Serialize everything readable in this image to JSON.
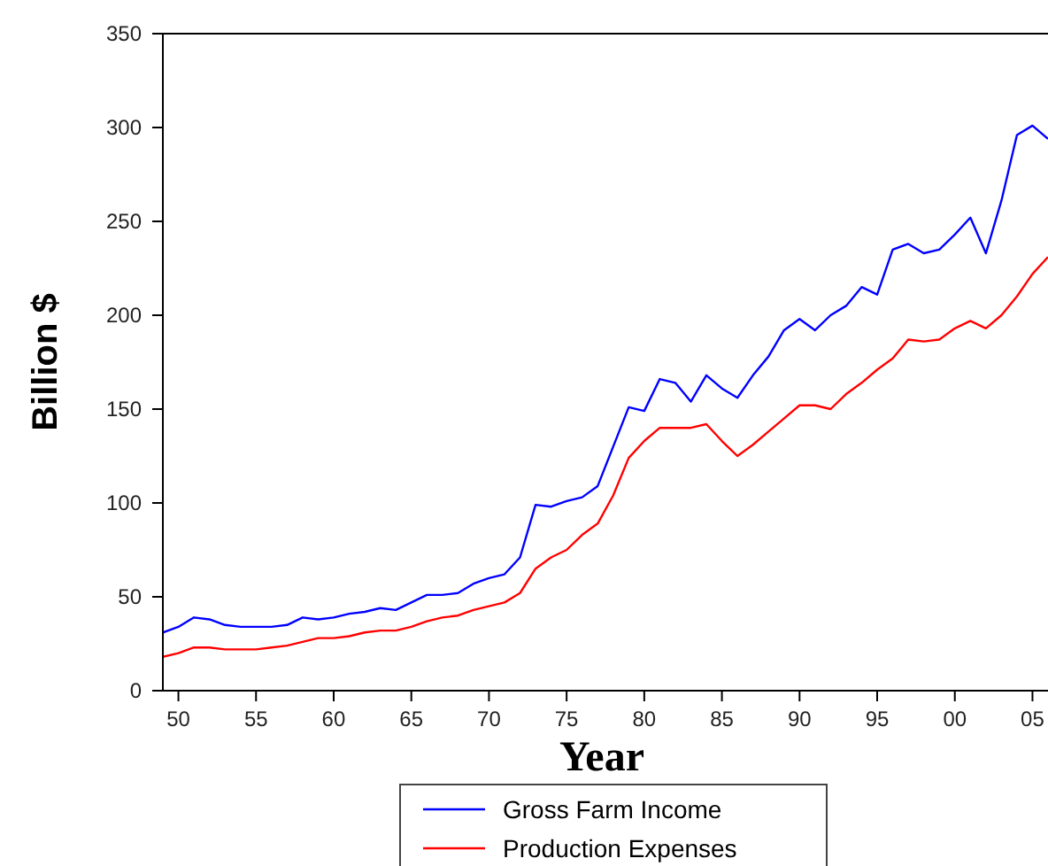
{
  "chart_data": {
    "type": "line",
    "xlabel": "Year",
    "ylabel": "Billion $",
    "x": [
      1949,
      1950,
      1951,
      1952,
      1953,
      1954,
      1955,
      1956,
      1957,
      1958,
      1959,
      1960,
      1961,
      1962,
      1963,
      1964,
      1965,
      1966,
      1967,
      1968,
      1969,
      1970,
      1971,
      1972,
      1973,
      1974,
      1975,
      1976,
      1977,
      1978,
      1979,
      1980,
      1981,
      1982,
      1983,
      1984,
      1985,
      1986,
      1987,
      1988,
      1989,
      1990,
      1991,
      1992,
      1993,
      1994,
      1995,
      1996,
      1997,
      1998,
      1999,
      2000,
      2001,
      2002,
      2003,
      2004,
      2005,
      2006
    ],
    "series": [
      {
        "name": "Gross Farm Income",
        "color": "#0000ff",
        "values": [
          31,
          34,
          39,
          38,
          35,
          34,
          34,
          34,
          35,
          39,
          38,
          39,
          41,
          42,
          44,
          43,
          47,
          51,
          51,
          52,
          57,
          60,
          62,
          71,
          99,
          98,
          101,
          103,
          109,
          130,
          151,
          149,
          166,
          164,
          154,
          168,
          161,
          156,
          168,
          178,
          192,
          198,
          192,
          200,
          205,
          215,
          211,
          235,
          238,
          233,
          235,
          243,
          252,
          233,
          261,
          296,
          301,
          294
        ]
      },
      {
        "name": "Production Expenses",
        "color": "#ff0000",
        "values": [
          18,
          20,
          23,
          23,
          22,
          22,
          22,
          23,
          24,
          26,
          28,
          28,
          29,
          31,
          32,
          32,
          34,
          37,
          39,
          40,
          43,
          45,
          47,
          52,
          65,
          71,
          75,
          83,
          89,
          104,
          124,
          133,
          140,
          140,
          140,
          142,
          133,
          125,
          131,
          138,
          145,
          152,
          152,
          150,
          158,
          164,
          171,
          177,
          187,
          186,
          187,
          193,
          197,
          193,
          200,
          210,
          222,
          231
        ]
      }
    ],
    "xlim": [
      1949,
      2006
    ],
    "xticks": [
      {
        "value": 1950,
        "label": "50"
      },
      {
        "value": 1955,
        "label": "55"
      },
      {
        "value": 1960,
        "label": "60"
      },
      {
        "value": 1965,
        "label": "65"
      },
      {
        "value": 1970,
        "label": "70"
      },
      {
        "value": 1975,
        "label": "75"
      },
      {
        "value": 1980,
        "label": "80"
      },
      {
        "value": 1985,
        "label": "85"
      },
      {
        "value": 1990,
        "label": "90"
      },
      {
        "value": 1995,
        "label": "95"
      },
      {
        "value": 2000,
        "label": "00"
      },
      {
        "value": 2005,
        "label": "05"
      }
    ],
    "ylim": [
      0,
      350
    ],
    "yticks": [
      0,
      50,
      100,
      150,
      200,
      250,
      300,
      350
    ],
    "grid": false,
    "legend": "bottom",
    "marker": "none",
    "line_style": "solid"
  }
}
